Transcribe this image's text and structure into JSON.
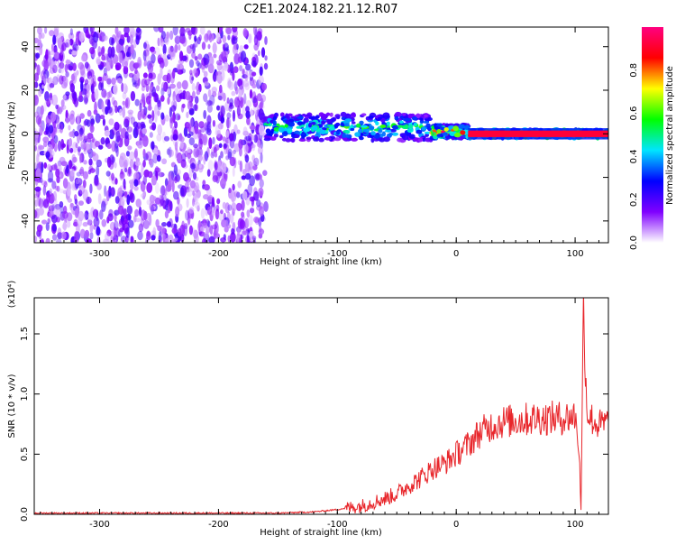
{
  "title": "C2E1.2024.182.21.12.R07",
  "colors": {
    "snr_line": "#e8262b",
    "background": "#ffffff"
  },
  "chart_data": [
    {
      "type": "heatmap",
      "xlabel": "Height of straight line (km)",
      "ylabel": "Frequency (Hz)",
      "xlim": [
        -355,
        128
      ],
      "ylim": [
        -50,
        49
      ],
      "xticks": [
        -300,
        -200,
        -100,
        0,
        100
      ],
      "yticks": [
        -40,
        -20,
        0,
        20,
        40
      ],
      "colorbar": {
        "label": "Normalized spectral amplitude",
        "range": [
          0,
          1
        ],
        "ticks": [
          "0.0",
          "0.2",
          "0.4",
          "0.6",
          "0.8"
        ],
        "colors": [
          "#ffffff",
          "#8000ff",
          "#0000ff",
          "#00e5ff",
          "#00ff00",
          "#ffff00",
          "#ff0000",
          "#ff0080"
        ]
      },
      "regions": [
        {
          "x_start": -355,
          "x_end": -160,
          "freq_range": [
            -50,
            49
          ],
          "amplitude": 0.1,
          "pattern": "noise"
        },
        {
          "x_start": -160,
          "x_end": -20,
          "freq_center": 3,
          "freq_halfwidth": 6,
          "amplitude": 0.45
        },
        {
          "x_start": -20,
          "x_end": 10,
          "freq_center": 1,
          "freq_halfwidth": 3,
          "amplitude": 0.7
        },
        {
          "x_start": 10,
          "x_end": 128,
          "freq_center": 0,
          "freq_halfwidth": 2,
          "amplitude": 0.9
        }
      ]
    },
    {
      "type": "line",
      "xlabel": "Height of straight line (km)",
      "ylabel": "SNR (10 * v/v)",
      "yscale_label": "(x10⁴)",
      "xlim": [
        -355,
        128
      ],
      "ylim": [
        0,
        1.8
      ],
      "xticks": [
        -300,
        -200,
        -100,
        0,
        100
      ],
      "yticks": [
        "0.0",
        "0.5",
        "1.0",
        "1.5"
      ],
      "series": [
        {
          "x": [
            -355,
            -300,
            -250,
            -200,
            -150,
            -120,
            -100,
            -80,
            -60,
            -50,
            -40,
            -30,
            -20,
            -10,
            0,
            10,
            20,
            30,
            40,
            50,
            60,
            70,
            80,
            90,
            100,
            103,
            105,
            107,
            110,
            115,
            120,
            128
          ],
          "y": [
            0.01,
            0.01,
            0.01,
            0.01,
            0.01,
            0.02,
            0.04,
            0.07,
            0.13,
            0.17,
            0.24,
            0.3,
            0.38,
            0.42,
            0.5,
            0.58,
            0.68,
            0.74,
            0.77,
            0.78,
            0.79,
            0.8,
            0.8,
            0.8,
            0.82,
            0.6,
            0.05,
            1.75,
            0.85,
            0.78,
            0.74,
            0.76
          ]
        }
      ]
    }
  ]
}
